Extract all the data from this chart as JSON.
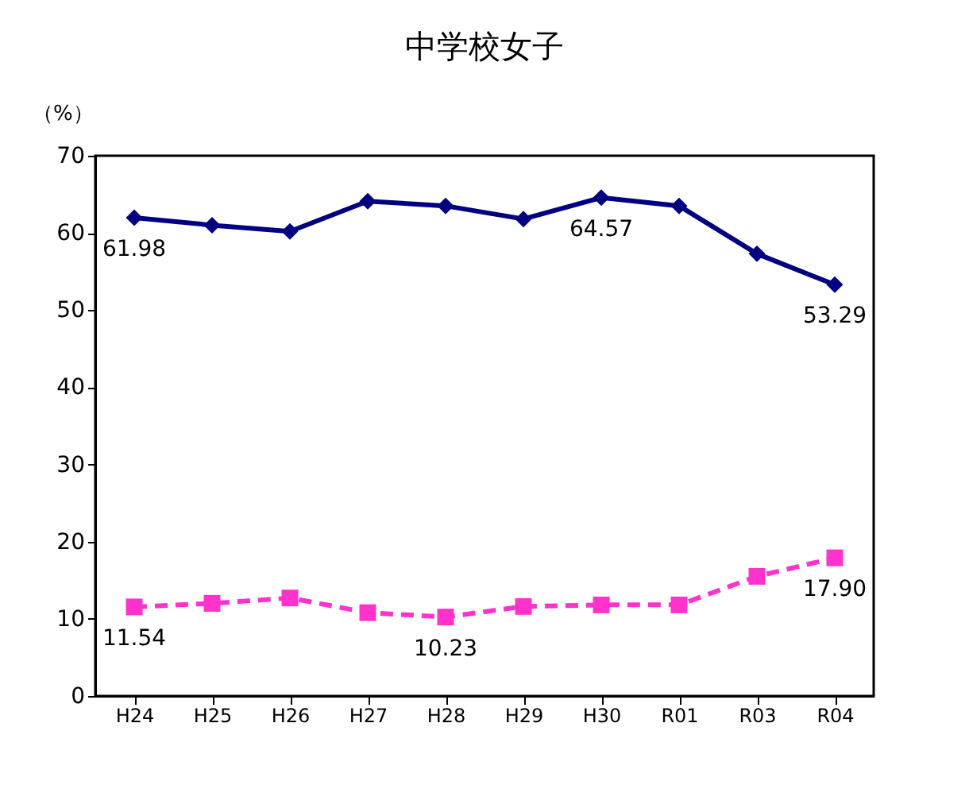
{
  "chart_data": {
    "type": "line",
    "title": "中学校女子",
    "ylabel": "（%）",
    "categories": [
      "H24",
      "H25",
      "H26",
      "H27",
      "H28",
      "H29",
      "H30",
      "R01",
      "R03",
      "R04"
    ],
    "ylim": [
      0,
      70
    ],
    "yticks": [
      0,
      10,
      20,
      30,
      40,
      50,
      60,
      70
    ],
    "grid": false,
    "series": [
      {
        "color": "#000080",
        "marker": "diamond",
        "line_style": "solid",
        "values": [
          61.98,
          61.0,
          60.2,
          64.1,
          63.5,
          61.8,
          64.57,
          63.5,
          57.3,
          53.29
        ],
        "value_labels": [
          "61.98",
          null,
          null,
          null,
          null,
          null,
          "64.57",
          null,
          null,
          "53.29"
        ]
      },
      {
        "color": "#ff33cc",
        "marker": "square",
        "line_style": "dashed",
        "values": [
          11.54,
          12.0,
          12.7,
          10.8,
          10.23,
          11.6,
          11.8,
          11.8,
          15.5,
          17.9
        ],
        "value_labels": [
          "11.54",
          null,
          null,
          null,
          "10.23",
          null,
          null,
          null,
          null,
          "17.90"
        ]
      }
    ]
  }
}
